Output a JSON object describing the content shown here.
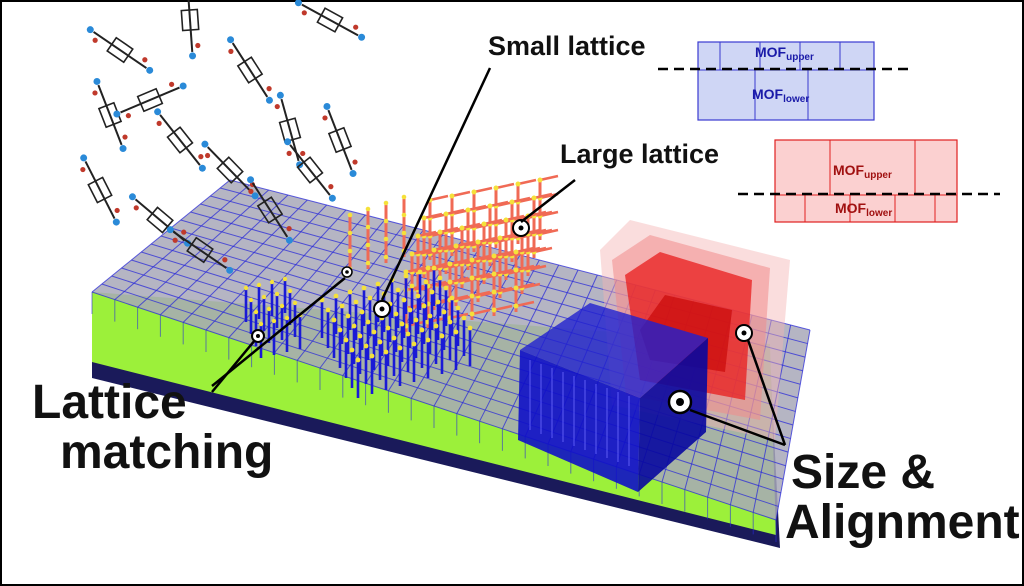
{
  "colors": {
    "background": "#ffffff",
    "small_lattice_mof": "#1a1ad6",
    "large_lattice_mof": "#f06a55",
    "red_box": "#e81c1c",
    "blue_box": "#1010c8",
    "substrate_grid": "#2b2bd8",
    "substrate_green": "#9cf03a",
    "substrate_base": "#1a1a5a",
    "linker_oxygen": "#c0392b",
    "linker_node": "#2a8ad8",
    "small_box_fill": "#cfd6f5",
    "large_box_fill": "#fbd0d0"
  },
  "labels": {
    "small_lattice": "Small lattice",
    "large_lattice": "Large lattice",
    "lattice_matching_line1": "Lattice",
    "lattice_matching_line2": "matching",
    "size_alignment_line1": "Size &",
    "size_alignment_line2": "Alignment"
  },
  "insets": {
    "small": {
      "upper_main": "MOF",
      "upper_sub": "upper",
      "lower_main": "MOF",
      "lower_sub": "lower"
    },
    "large": {
      "upper_main": "MOF",
      "upper_sub": "upper",
      "lower_main": "MOF",
      "lower_sub": "lower"
    }
  }
}
